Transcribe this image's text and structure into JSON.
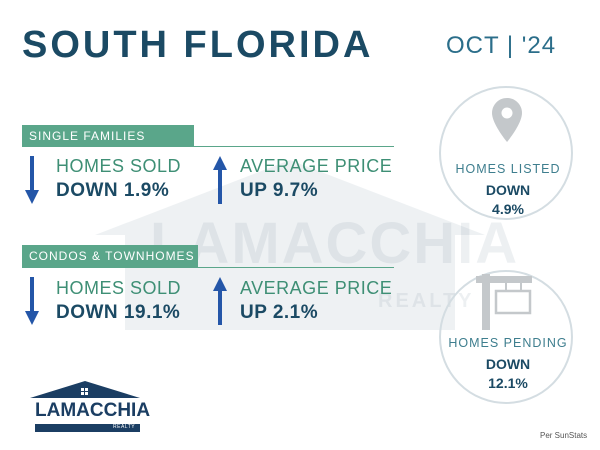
{
  "header": {
    "title": "SOUTH FLORIDA",
    "date": "OCT | '24"
  },
  "sections": [
    {
      "label": "SINGLE FAMILIES",
      "metrics": [
        {
          "label": "HOMES SOLD",
          "value": "DOWN 1.9%",
          "direction": "down"
        },
        {
          "label": "AVERAGE PRICE",
          "value": "UP 9.7%",
          "direction": "up"
        }
      ]
    },
    {
      "label": "CONDOS & TOWNHOMES",
      "metrics": [
        {
          "label": "HOMES SOLD",
          "value": "DOWN 19.1%",
          "direction": "down"
        },
        {
          "label": "AVERAGE PRICE",
          "value": "UP 2.1%",
          "direction": "up"
        }
      ]
    }
  ],
  "circles": [
    {
      "icon": "map-pin-icon",
      "label": "HOMES LISTED",
      "direction": "DOWN",
      "value": "4.9%"
    },
    {
      "icon": "for-sale-sign-icon",
      "label": "HOMES PENDING",
      "direction": "DOWN",
      "value": "12.1%"
    }
  ],
  "watermark": {
    "name": "LAMACCHIA",
    "sub": "REALTY"
  },
  "logo": {
    "name": "LAMACCHIA",
    "sub": "REALTY"
  },
  "footer": {
    "credit": "Per SunStats"
  },
  "colors": {
    "navy": "#1b4a64",
    "green": "#5aa68a",
    "arrow_blue": "#2456a8",
    "circle_border": "#d4dde2"
  }
}
